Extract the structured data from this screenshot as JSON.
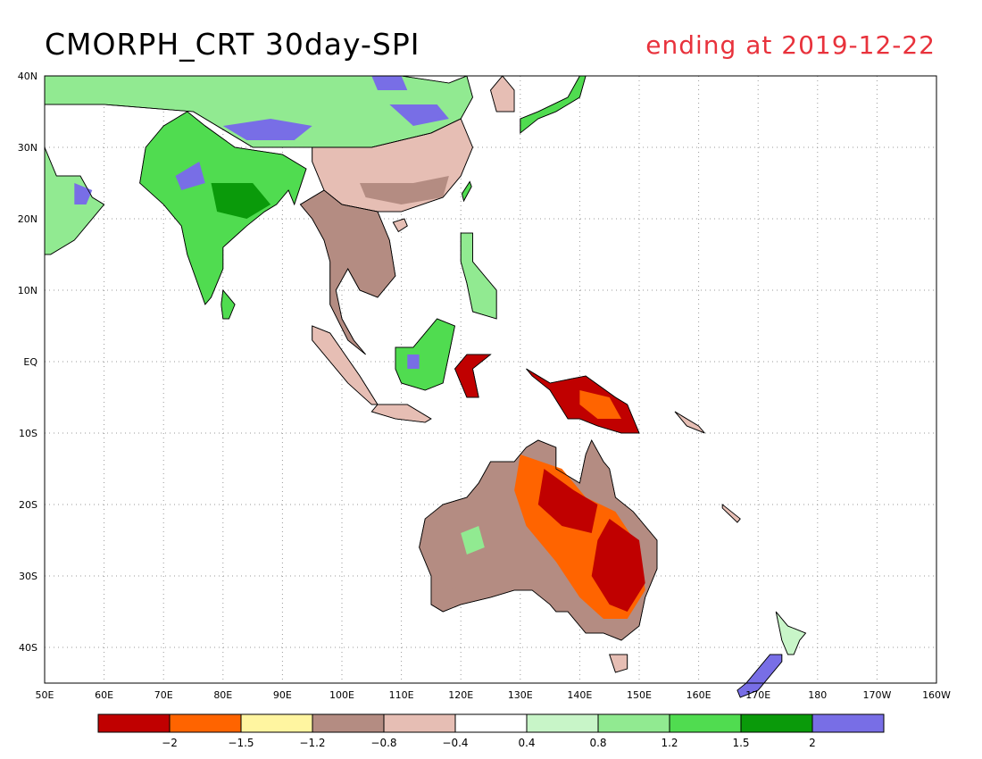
{
  "title": {
    "main": "CMORPH_CRT 30day-SPI",
    "date": "ending at 2019-12-22"
  },
  "colors": {
    "date_text": "#e8323c"
  },
  "map": {
    "lon_range": [
      50,
      200
    ],
    "lat_range": [
      -45,
      40
    ],
    "lon_labels": [
      "50E",
      "60E",
      "70E",
      "80E",
      "90E",
      "100E",
      "110E",
      "120E",
      "130E",
      "140E",
      "150E",
      "160E",
      "170E",
      "180",
      "170W",
      "160W"
    ],
    "lat_labels": [
      "40N",
      "30N",
      "20N",
      "10N",
      "EQ",
      "10S",
      "20S",
      "30S",
      "40S"
    ]
  },
  "legend": {
    "colors": [
      "#c00000",
      "#ff6400",
      "#fff5a0",
      "#b48c82",
      "#e6beb4",
      "#ffffff",
      "#c8f5c8",
      "#91ea91",
      "#50dc50",
      "#0a9a0a",
      "#786ee6"
    ],
    "labels": [
      "−2",
      "−1.5",
      "−1.2",
      "−0.8",
      "−0.4",
      "0.4",
      "0.8",
      "1.2",
      "1.5",
      "2"
    ]
  }
}
